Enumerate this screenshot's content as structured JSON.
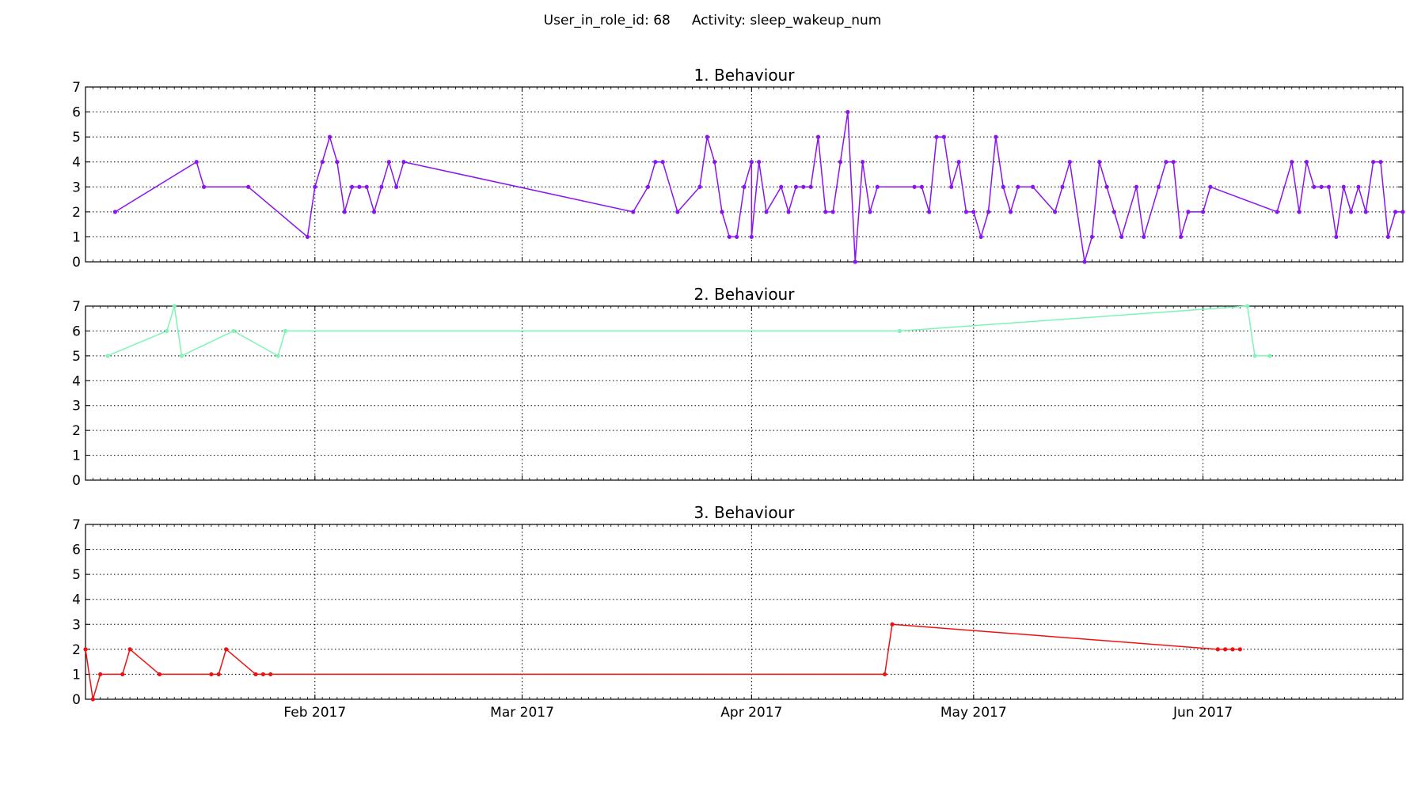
{
  "figure": {
    "suptitle": "User_in_role_id: 68     Activity: sleep_wakeup_num"
  },
  "chart_data": [
    {
      "type": "line",
      "title": "1. Behaviour",
      "color": "#8a14f0",
      "ylim": [
        0,
        7
      ],
      "yticks": [
        0,
        1,
        2,
        3,
        4,
        5,
        6,
        7
      ],
      "xlim": [
        "2017-01-01",
        "2017-06-28"
      ],
      "xticks": [
        {
          "date": "2017-02-01",
          "label": "Feb 2017"
        },
        {
          "date": "2017-03-01",
          "label": "Mar 2017"
        },
        {
          "date": "2017-04-01",
          "label": "Apr 2017"
        },
        {
          "date": "2017-05-01",
          "label": "May 2017"
        },
        {
          "date": "2017-06-01",
          "label": "Jun 2017"
        }
      ],
      "show_xticklabels": false,
      "grid": true,
      "markers": true,
      "points": [
        [
          "2017-01-05",
          2
        ],
        [
          "2017-01-16",
          4
        ],
        [
          "2017-01-17",
          3
        ],
        [
          "2017-01-23",
          3
        ],
        [
          "2017-01-31",
          1
        ],
        [
          "2017-02-01",
          3
        ],
        [
          "2017-02-02",
          4
        ],
        [
          "2017-02-03",
          5
        ],
        [
          "2017-02-04",
          4
        ],
        [
          "2017-02-05",
          2
        ],
        [
          "2017-02-06",
          3
        ],
        [
          "2017-02-07",
          3
        ],
        [
          "2017-02-08",
          3
        ],
        [
          "2017-02-09",
          2
        ],
        [
          "2017-02-10",
          3
        ],
        [
          "2017-02-11",
          4
        ],
        [
          "2017-02-12",
          3
        ],
        [
          "2017-02-13",
          4
        ],
        [
          "2017-03-16",
          2
        ],
        [
          "2017-03-18",
          3
        ],
        [
          "2017-03-19",
          4
        ],
        [
          "2017-03-20",
          4
        ],
        [
          "2017-03-22",
          2
        ],
        [
          "2017-03-25",
          3
        ],
        [
          "2017-03-26",
          5
        ],
        [
          "2017-03-27",
          4
        ],
        [
          "2017-03-28",
          2
        ],
        [
          "2017-03-29",
          1
        ],
        [
          "2017-03-30",
          1
        ],
        [
          "2017-03-31",
          3
        ],
        [
          "2017-04-01",
          4
        ],
        [
          "2017-04-01",
          1
        ],
        [
          "2017-04-02",
          4
        ],
        [
          "2017-04-03",
          2
        ],
        [
          "2017-04-05",
          3
        ],
        [
          "2017-04-06",
          2
        ],
        [
          "2017-04-07",
          3
        ],
        [
          "2017-04-08",
          3
        ],
        [
          "2017-04-09",
          3
        ],
        [
          "2017-04-10",
          5
        ],
        [
          "2017-04-11",
          2
        ],
        [
          "2017-04-12",
          2
        ],
        [
          "2017-04-13",
          4
        ],
        [
          "2017-04-14",
          6
        ],
        [
          "2017-04-15",
          0
        ],
        [
          "2017-04-16",
          4
        ],
        [
          "2017-04-17",
          2
        ],
        [
          "2017-04-18",
          3
        ],
        [
          "2017-04-23",
          3
        ],
        [
          "2017-04-24",
          3
        ],
        [
          "2017-04-25",
          2
        ],
        [
          "2017-04-26",
          5
        ],
        [
          "2017-04-27",
          5
        ],
        [
          "2017-04-28",
          3
        ],
        [
          "2017-04-29",
          4
        ],
        [
          "2017-04-30",
          2
        ],
        [
          "2017-05-01",
          2
        ],
        [
          "2017-05-02",
          1
        ],
        [
          "2017-05-03",
          2
        ],
        [
          "2017-05-04",
          5
        ],
        [
          "2017-05-05",
          3
        ],
        [
          "2017-05-06",
          2
        ],
        [
          "2017-05-07",
          3
        ],
        [
          "2017-05-09",
          3
        ],
        [
          "2017-05-12",
          2
        ],
        [
          "2017-05-13",
          3
        ],
        [
          "2017-05-14",
          4
        ],
        [
          "2017-05-16",
          0
        ],
        [
          "2017-05-17",
          1
        ],
        [
          "2017-05-18",
          4
        ],
        [
          "2017-05-19",
          3
        ],
        [
          "2017-05-20",
          2
        ],
        [
          "2017-05-21",
          1
        ],
        [
          "2017-05-23",
          3
        ],
        [
          "2017-05-24",
          1
        ],
        [
          "2017-05-26",
          3
        ],
        [
          "2017-05-27",
          4
        ],
        [
          "2017-05-28",
          4
        ],
        [
          "2017-05-29",
          1
        ],
        [
          "2017-05-30",
          2
        ],
        [
          "2017-06-01",
          2
        ],
        [
          "2017-06-02",
          3
        ],
        [
          "2017-06-11",
          2
        ],
        [
          "2017-06-13",
          4
        ],
        [
          "2017-06-14",
          2
        ],
        [
          "2017-06-15",
          4
        ],
        [
          "2017-06-16",
          3
        ],
        [
          "2017-06-17",
          3
        ],
        [
          "2017-06-18",
          3
        ],
        [
          "2017-06-19",
          1
        ],
        [
          "2017-06-20",
          3
        ],
        [
          "2017-06-21",
          2
        ],
        [
          "2017-06-22",
          3
        ],
        [
          "2017-06-23",
          2
        ],
        [
          "2017-06-24",
          4
        ],
        [
          "2017-06-25",
          4
        ],
        [
          "2017-06-26",
          1
        ],
        [
          "2017-06-27",
          2
        ],
        [
          "2017-06-28",
          2
        ]
      ]
    },
    {
      "type": "line",
      "title": "2. Behaviour",
      "color": "#7ef5b5",
      "ylim": [
        0,
        7
      ],
      "yticks": [
        0,
        1,
        2,
        3,
        4,
        5,
        6,
        7
      ],
      "xlim": [
        "2017-01-01",
        "2017-06-28"
      ],
      "xticks": [
        {
          "date": "2017-02-01",
          "label": "Feb 2017"
        },
        {
          "date": "2017-03-01",
          "label": "Mar 2017"
        },
        {
          "date": "2017-04-01",
          "label": "Apr 2017"
        },
        {
          "date": "2017-05-01",
          "label": "May 2017"
        },
        {
          "date": "2017-06-01",
          "label": "Jun 2017"
        }
      ],
      "show_xticklabels": false,
      "grid": true,
      "markers": true,
      "points": [
        [
          "2017-01-04",
          5
        ],
        [
          "2017-01-12",
          6
        ],
        [
          "2017-01-13",
          7
        ],
        [
          "2017-01-14",
          5
        ],
        [
          "2017-01-21",
          6
        ],
        [
          "2017-01-27",
          5
        ],
        [
          "2017-01-28",
          6
        ],
        [
          "2017-04-21",
          6
        ],
        [
          "2017-06-07",
          7
        ],
        [
          "2017-06-08",
          5
        ],
        [
          "2017-06-10",
          5
        ]
      ]
    },
    {
      "type": "line",
      "title": "3. Behaviour",
      "color": "#ee1111",
      "ylim": [
        0,
        7
      ],
      "yticks": [
        0,
        1,
        2,
        3,
        4,
        5,
        6,
        7
      ],
      "xlim": [
        "2017-01-01",
        "2017-06-28"
      ],
      "xticks": [
        {
          "date": "2017-02-01",
          "label": "Feb 2017"
        },
        {
          "date": "2017-03-01",
          "label": "Mar 2017"
        },
        {
          "date": "2017-04-01",
          "label": "Apr 2017"
        },
        {
          "date": "2017-05-01",
          "label": "May 2017"
        },
        {
          "date": "2017-06-01",
          "label": "Jun 2017"
        }
      ],
      "show_xticklabels": true,
      "grid": true,
      "markers": true,
      "points": [
        [
          "2017-01-01",
          2
        ],
        [
          "2017-01-02",
          0
        ],
        [
          "2017-01-03",
          1
        ],
        [
          "2017-01-06",
          1
        ],
        [
          "2017-01-07",
          2
        ],
        [
          "2017-01-11",
          1
        ],
        [
          "2017-01-18",
          1
        ],
        [
          "2017-01-19",
          1
        ],
        [
          "2017-01-20",
          2
        ],
        [
          "2017-01-24",
          1
        ],
        [
          "2017-01-25",
          1
        ],
        [
          "2017-01-26",
          1
        ],
        [
          "2017-04-19",
          1
        ],
        [
          "2017-04-20",
          3
        ],
        [
          "2017-06-03",
          2
        ],
        [
          "2017-06-04",
          2
        ],
        [
          "2017-06-05",
          2
        ],
        [
          "2017-06-06",
          2
        ]
      ]
    }
  ]
}
